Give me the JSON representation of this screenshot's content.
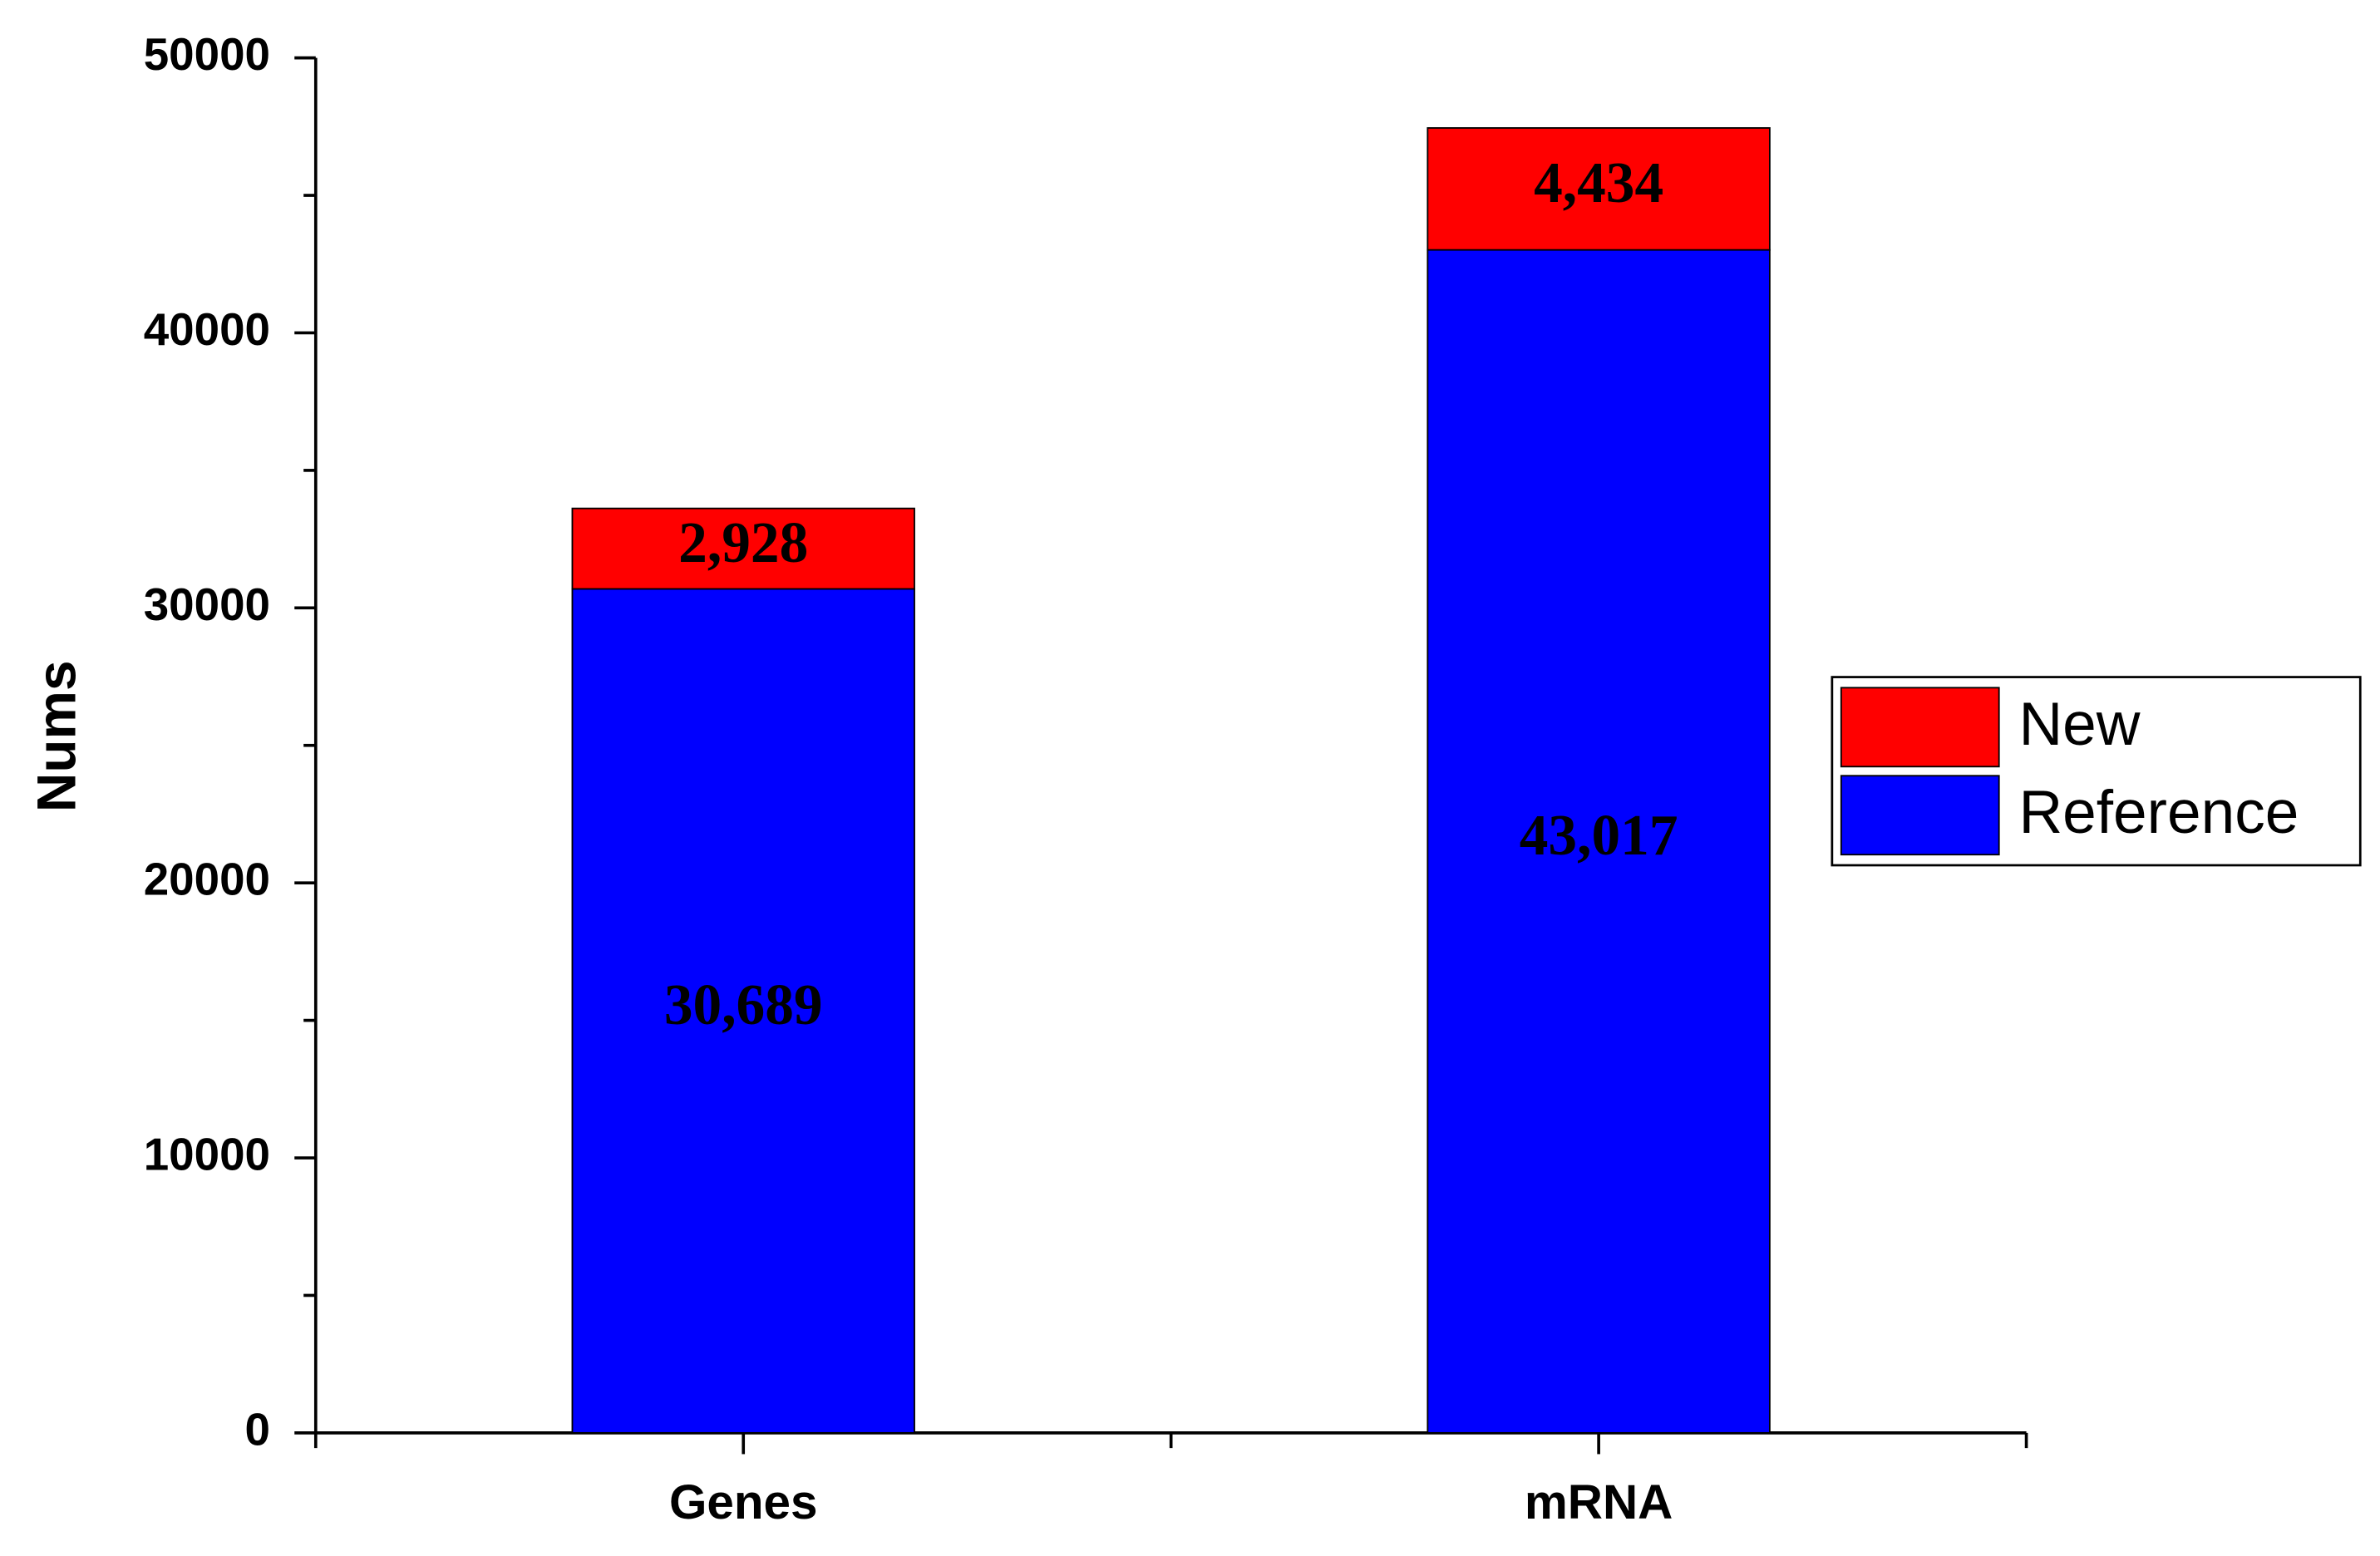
{
  "chart_data": {
    "type": "bar",
    "stacked": true,
    "ylabel": "Nums",
    "categories": [
      "Genes",
      "mRNA"
    ],
    "series": [
      {
        "name": "Reference",
        "color": "#0000ff",
        "values": [
          30689,
          43017
        ],
        "value_labels": [
          "30,689",
          "43,017"
        ]
      },
      {
        "name": "New",
        "color": "#ff0000",
        "values": [
          2928,
          4434
        ],
        "value_labels": [
          "2,928",
          "4,434"
        ]
      }
    ],
    "ylim": [
      0,
      50000
    ],
    "yticks": [
      0,
      10000,
      20000,
      30000,
      40000,
      50000
    ],
    "legend": "right"
  }
}
